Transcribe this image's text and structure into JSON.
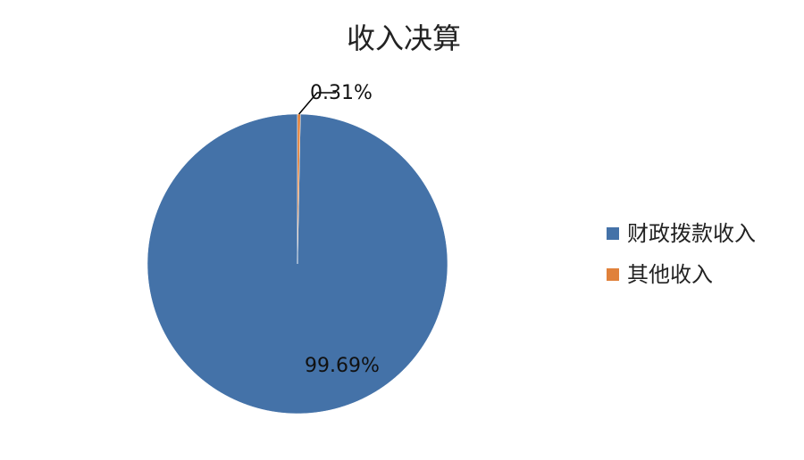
{
  "chart_data": {
    "type": "pie",
    "title": "收入决算",
    "categories": [
      "财政拨款收入",
      "其他收入"
    ],
    "values": [
      99.69,
      0.31
    ],
    "data_labels": [
      "99.69%",
      "0.31%"
    ],
    "colors": [
      "#4472A8",
      "#E0813B"
    ],
    "legend_position": "right"
  }
}
